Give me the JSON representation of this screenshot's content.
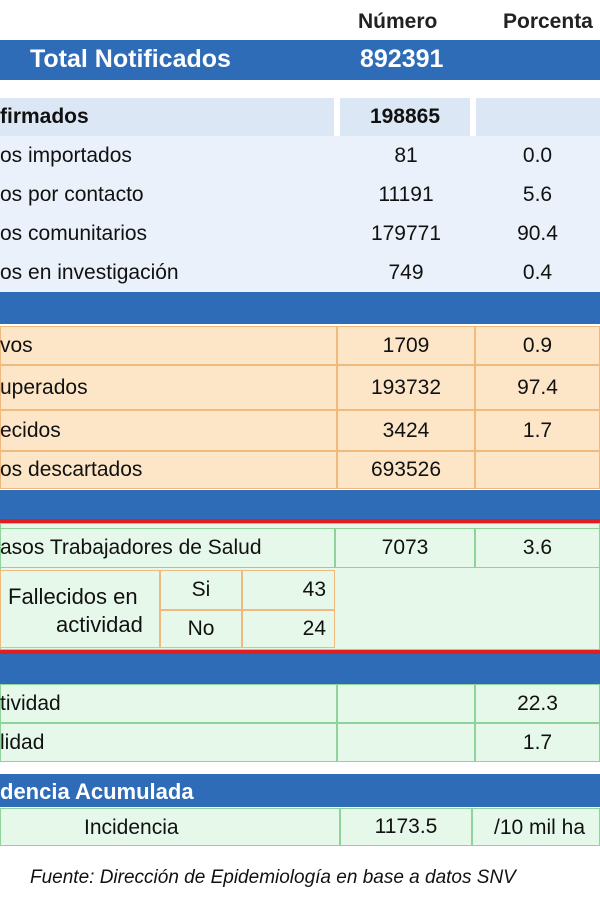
{
  "header": {
    "col_numero": "Número",
    "col_porcentaje": "Porcenta"
  },
  "total": {
    "label": "Total Notificados",
    "value": "892391"
  },
  "confirmados": {
    "label": "firmados",
    "value": "198865",
    "rows": [
      {
        "label": "os importados",
        "value": "81",
        "pct": "0.0"
      },
      {
        "label": "os por contacto",
        "value": "11191",
        "pct": "5.6"
      },
      {
        "label": "os comunitarios",
        "value": "179771",
        "pct": "90.4"
      },
      {
        "label": "os en investigación",
        "value": "749",
        "pct": "0.4"
      }
    ]
  },
  "estado": {
    "rows": [
      {
        "label": "vos",
        "value": "1709",
        "pct": "0.9"
      },
      {
        "label": "uperados",
        "value": "193732",
        "pct": "97.4"
      },
      {
        "label": "ecidos",
        "value": "3424",
        "pct": "1.7"
      },
      {
        "label": "os descartados",
        "value": "693526",
        "pct": ""
      }
    ]
  },
  "salud": {
    "label": "asos Trabajadores de Salud",
    "value": "7073",
    "pct": "3.6",
    "fallecidos_label_1": "Fallecidos en",
    "fallecidos_label_2": "actividad",
    "si_label": "Si",
    "si_value": "43",
    "no_label": "No",
    "no_value": "24"
  },
  "tasas": {
    "rows": [
      {
        "label": "tividad",
        "value": "",
        "pct": "22.3"
      },
      {
        "label": "lidad",
        "value": "",
        "pct": "1.7"
      }
    ]
  },
  "incidencia": {
    "title": "dencia Acumulada",
    "label": "Incidencia",
    "value": "1173.5",
    "unit": "/10 mil ha"
  },
  "source": "Fuente: Dirección de Epidemiología en base a datos SNV"
}
